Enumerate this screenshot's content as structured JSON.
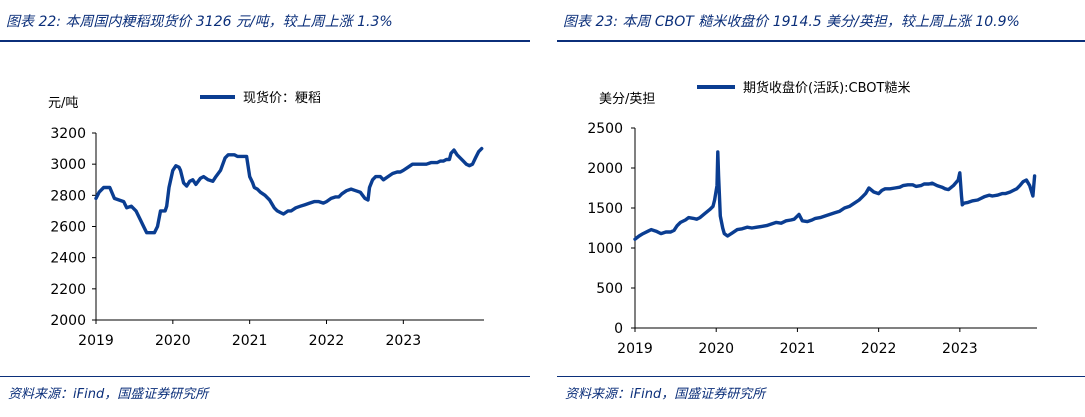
{
  "charts": [
    {
      "title": "图表 22:  本周国内粳稻现货价 3126 元/吨，较上周上涨 1.3%",
      "source": "资料来源：iFind，国盛证券研究所",
      "color": "#0a3d91"
    },
    {
      "title": "图表 23:  本周 CBOT 糙米收盘价 1914.5 美分/英担，较上周上涨 10.9%",
      "source": "资料来源：iFind，国盛证券研究所",
      "color": "#0a3d91"
    }
  ],
  "chart_data": [
    {
      "type": "line",
      "title": "",
      "xlabel": "",
      "ylabel": "元/吨",
      "ylim": [
        2000,
        3200
      ],
      "yticks": [
        2000,
        2200,
        2400,
        2600,
        2800,
        3000,
        3200
      ],
      "xlim": [
        2019,
        2024.05
      ],
      "xticks": [
        "2019",
        "2020",
        "2021",
        "2022",
        "2023"
      ],
      "grid": false,
      "legend": "top-center",
      "series": [
        {
          "name": "现货价：粳稻",
          "x": [
            2019.0,
            2019.04,
            2019.1,
            2019.18,
            2019.24,
            2019.3,
            2019.36,
            2019.4,
            2019.46,
            2019.52,
            2019.58,
            2019.62,
            2019.66,
            2019.72,
            2019.76,
            2019.8,
            2019.84,
            2019.86,
            2019.9,
            2019.92,
            2019.95,
            2020.0,
            2020.04,
            2020.08,
            2020.1,
            2020.14,
            2020.18,
            2020.22,
            2020.26,
            2020.3,
            2020.36,
            2020.4,
            2020.46,
            2020.52,
            2020.56,
            2020.62,
            2020.68,
            2020.72,
            2020.76,
            2020.8,
            2020.84,
            2020.9,
            2020.96,
            2021.0,
            2021.04,
            2021.06,
            2021.1,
            2021.14,
            2021.2,
            2021.26,
            2021.32,
            2021.36,
            2021.4,
            2021.44,
            2021.5,
            2021.54,
            2021.6,
            2021.66,
            2021.72,
            2021.78,
            2021.84,
            2021.9,
            2021.96,
            2022.0,
            2022.06,
            2022.12,
            2022.16,
            2022.2,
            2022.26,
            2022.32,
            2022.38,
            2022.44,
            2022.5,
            2022.54,
            2022.56,
            2022.6,
            2022.64,
            2022.7,
            2022.74,
            2022.8,
            2022.86,
            2022.92,
            2022.96,
            2023.0,
            2023.06,
            2023.12,
            2023.18,
            2023.24,
            2023.3,
            2023.36,
            2023.4,
            2023.44,
            2023.48,
            2023.52,
            2023.56,
            2023.6,
            2023.62,
            2023.66,
            2023.7,
            2023.74,
            2023.78,
            2023.82,
            2023.86,
            2023.9,
            2023.94,
            2023.98,
            2024.02
          ],
          "y": [
            2780,
            2820,
            2850,
            2850,
            2780,
            2770,
            2760,
            2720,
            2730,
            2700,
            2640,
            2600,
            2560,
            2560,
            2560,
            2600,
            2700,
            2700,
            2700,
            2730,
            2850,
            2960,
            2990,
            2980,
            2960,
            2880,
            2860,
            2890,
            2900,
            2870,
            2910,
            2920,
            2900,
            2890,
            2920,
            2960,
            3040,
            3060,
            3060,
            3060,
            3050,
            3050,
            3050,
            2920,
            2880,
            2850,
            2840,
            2820,
            2800,
            2770,
            2720,
            2700,
            2690,
            2680,
            2700,
            2700,
            2720,
            2730,
            2740,
            2750,
            2760,
            2760,
            2750,
            2760,
            2780,
            2790,
            2790,
            2810,
            2830,
            2840,
            2830,
            2820,
            2780,
            2770,
            2850,
            2900,
            2920,
            2920,
            2900,
            2920,
            2940,
            2950,
            2950,
            2960,
            2980,
            3000,
            3000,
            3000,
            3000,
            3010,
            3010,
            3010,
            3020,
            3020,
            3030,
            3030,
            3070,
            3090,
            3060,
            3040,
            3020,
            3000,
            2990,
            3000,
            3040,
            3080,
            3100
          ]
        }
      ]
    },
    {
      "type": "line",
      "title": "",
      "xlabel": "",
      "ylabel": "美分/英担",
      "ylim": [
        0,
        2500
      ],
      "yticks": [
        0,
        500,
        1000,
        1500,
        2000,
        2500
      ],
      "xlim": [
        2019,
        2023.95
      ],
      "xticks": [
        "2019",
        "2020",
        "2021",
        "2022",
        "2023"
      ],
      "grid": false,
      "legend": "top-center",
      "series": [
        {
          "name": "期货收盘价(活跃):CBOT糙米",
          "x": [
            2019.0,
            2019.05,
            2019.1,
            2019.16,
            2019.2,
            2019.26,
            2019.32,
            2019.38,
            2019.44,
            2019.48,
            2019.52,
            2019.56,
            2019.62,
            2019.66,
            2019.72,
            2019.76,
            2019.8,
            2019.86,
            2019.92,
            2019.96,
            2019.98,
            2020.01,
            2020.02,
            2020.03,
            2020.05,
            2020.08,
            2020.1,
            2020.14,
            2020.2,
            2020.26,
            2020.32,
            2020.38,
            2020.44,
            2020.5,
            2020.56,
            2020.62,
            2020.68,
            2020.74,
            2020.8,
            2020.86,
            2020.92,
            2020.96,
            2021.02,
            2021.06,
            2021.12,
            2021.18,
            2021.22,
            2021.28,
            2021.34,
            2021.4,
            2021.46,
            2021.52,
            2021.58,
            2021.64,
            2021.7,
            2021.76,
            2021.8,
            2021.84,
            2021.88,
            2021.94,
            2022.0,
            2022.04,
            2022.08,
            2022.14,
            2022.2,
            2022.26,
            2022.3,
            2022.36,
            2022.42,
            2022.46,
            2022.52,
            2022.56,
            2022.62,
            2022.66,
            2022.72,
            2022.78,
            2022.82,
            2022.86,
            2022.92,
            2022.98,
            2023.0,
            2023.02,
            2023.03,
            2023.05,
            2023.1,
            2023.16,
            2023.22,
            2023.26,
            2023.3,
            2023.36,
            2023.4,
            2023.46,
            2023.52,
            2023.56,
            2023.62,
            2023.66,
            2023.7,
            2023.74,
            2023.78,
            2023.82,
            2023.86,
            2023.9,
            2023.92
          ],
          "y": [
            1110,
            1150,
            1180,
            1210,
            1230,
            1210,
            1180,
            1200,
            1200,
            1220,
            1280,
            1320,
            1350,
            1380,
            1370,
            1360,
            1380,
            1430,
            1480,
            1520,
            1600,
            1780,
            2200,
            1900,
            1400,
            1250,
            1180,
            1150,
            1190,
            1230,
            1240,
            1260,
            1250,
            1260,
            1270,
            1280,
            1300,
            1320,
            1310,
            1340,
            1350,
            1360,
            1420,
            1340,
            1330,
            1350,
            1370,
            1380,
            1400,
            1420,
            1440,
            1460,
            1500,
            1520,
            1560,
            1600,
            1640,
            1680,
            1750,
            1700,
            1680,
            1720,
            1740,
            1740,
            1750,
            1760,
            1780,
            1790,
            1790,
            1770,
            1780,
            1800,
            1800,
            1810,
            1780,
            1760,
            1740,
            1730,
            1780,
            1850,
            1940,
            1650,
            1540,
            1560,
            1570,
            1590,
            1600,
            1620,
            1640,
            1660,
            1650,
            1660,
            1680,
            1680,
            1700,
            1720,
            1740,
            1780,
            1830,
            1850,
            1780,
            1650,
            1900
          ]
        }
      ]
    }
  ]
}
